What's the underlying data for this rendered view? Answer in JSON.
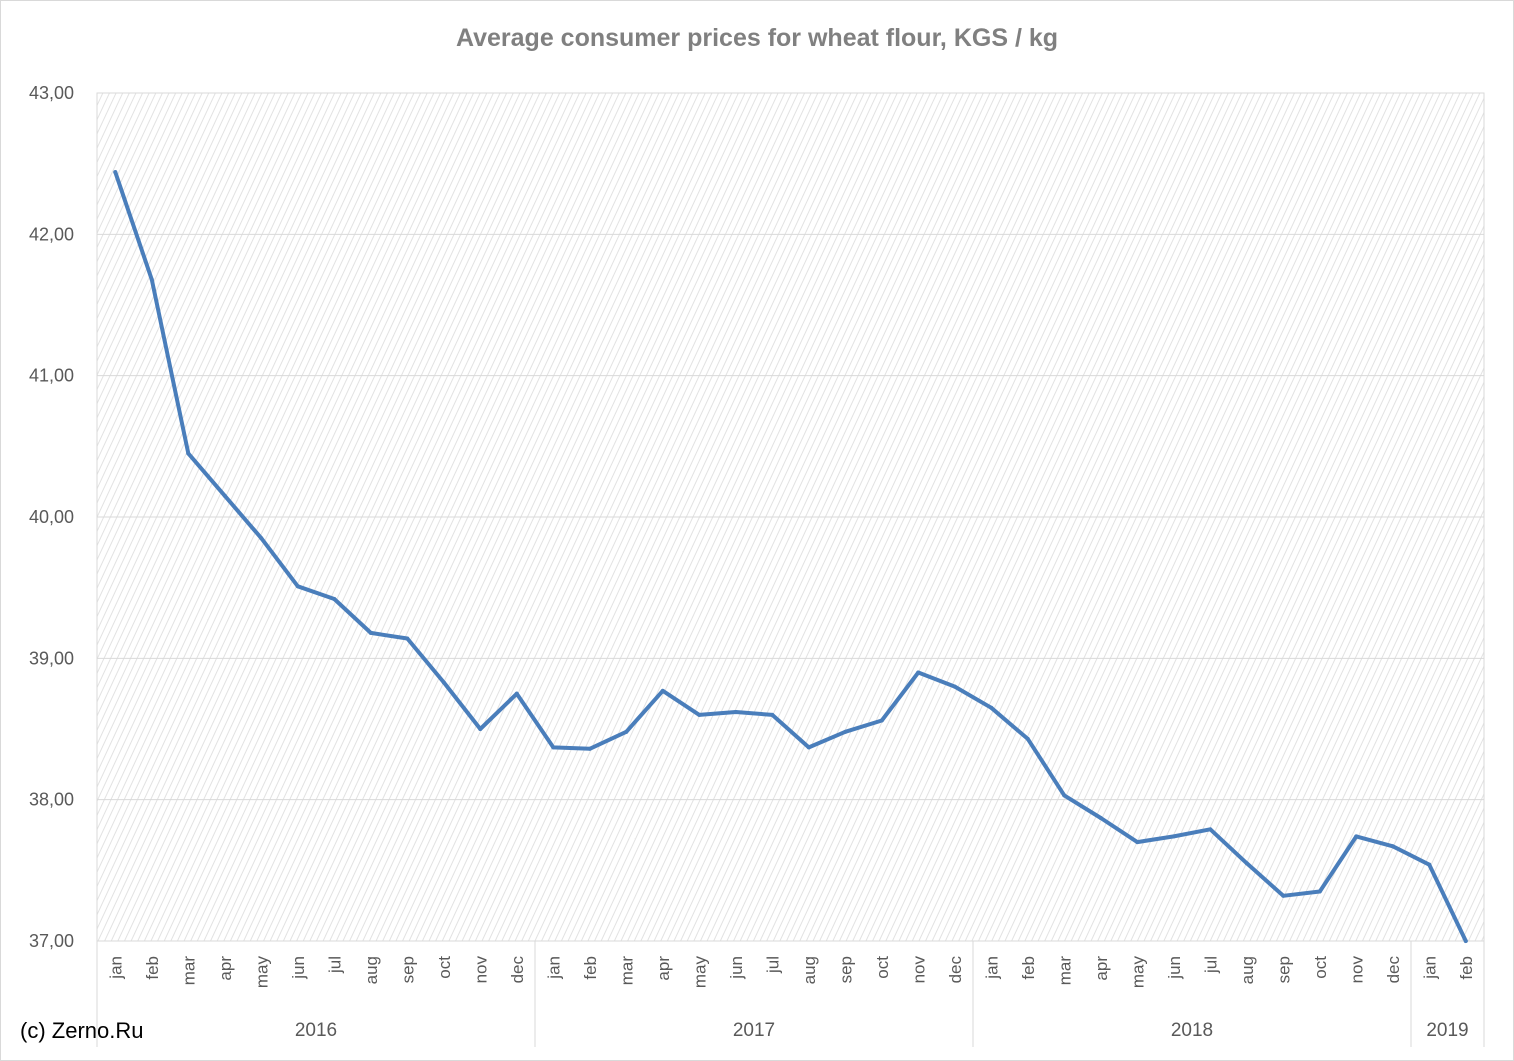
{
  "chart_data": {
    "type": "line",
    "title": "Average consumer prices for wheat flour, KGS / kg",
    "xlabel": "",
    "ylabel": "",
    "ylim": [
      37,
      43
    ],
    "yticks": [
      "37,00",
      "38,00",
      "39,00",
      "40,00",
      "41,00",
      "42,00",
      "43,00"
    ],
    "grid": true,
    "legend": "none",
    "categories": [
      "jan",
      "feb",
      "mar",
      "apr",
      "may",
      "jun",
      "jul",
      "aug",
      "sep",
      "oct",
      "nov",
      "dec",
      "jan",
      "feb",
      "mar",
      "apr",
      "may",
      "jun",
      "jul",
      "aug",
      "sep",
      "oct",
      "nov",
      "dec",
      "jan",
      "feb",
      "mar",
      "apr",
      "may",
      "jun",
      "jul",
      "aug",
      "sep",
      "oct",
      "nov",
      "dec",
      "jan",
      "feb"
    ],
    "year_groups": [
      {
        "label": "2016",
        "count": 12
      },
      {
        "label": "2017",
        "count": 12
      },
      {
        "label": "2018",
        "count": 12
      },
      {
        "label": "2019",
        "count": 2
      }
    ],
    "series": [
      {
        "values": [
          42.44,
          41.68,
          40.45,
          40.15,
          39.85,
          39.51,
          39.42,
          39.18,
          39.14,
          38.83,
          38.5,
          38.75,
          38.37,
          38.36,
          38.48,
          38.77,
          38.6,
          38.62,
          38.6,
          38.37,
          38.48,
          38.56,
          38.9,
          38.8,
          38.65,
          38.43,
          38.03,
          37.87,
          37.7,
          37.74,
          37.79,
          37.55,
          37.32,
          37.35,
          37.74,
          37.67,
          37.54,
          37.0
        ]
      }
    ],
    "line_color": "#4a7ebb"
  },
  "watermark": "(c) Zerno.Ru"
}
